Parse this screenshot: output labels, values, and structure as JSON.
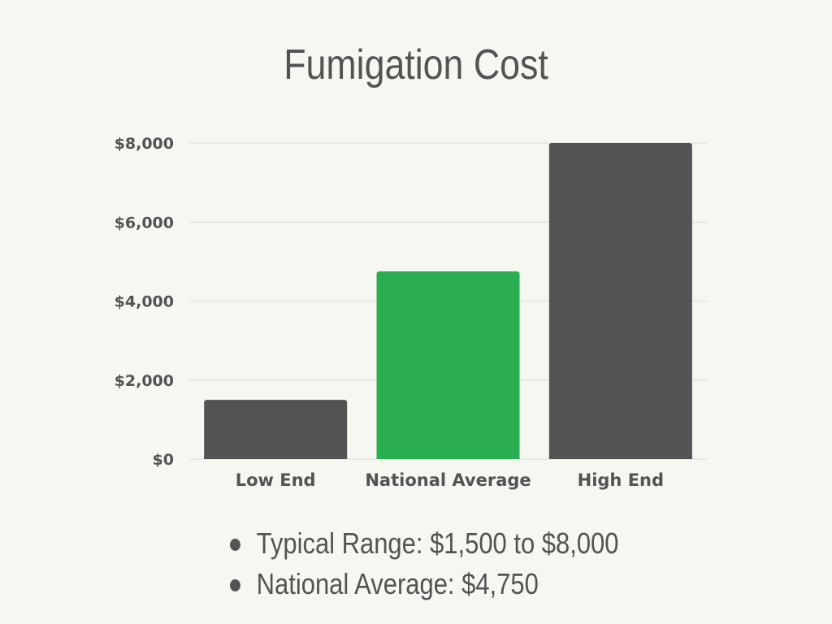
{
  "colors": {
    "background": "#f7f7f1",
    "text": "#535353",
    "bar_dark": "#535353",
    "bar_highlight": "#2bad51",
    "grid": "#d9d9d6"
  },
  "bullets": [
    "Typical Range: $1,500 to $8,000",
    "National Average: $4,750"
  ],
  "chart_data": {
    "type": "bar",
    "title": "Fumigation Cost",
    "categories": [
      "Low End",
      "National Average",
      "High End"
    ],
    "values": [
      1500,
      4750,
      8000
    ],
    "bar_colors": [
      "#535353",
      "#2bad51",
      "#535353"
    ],
    "ylim": [
      0,
      8000
    ],
    "yticks": [
      0,
      2000,
      4000,
      6000,
      8000
    ],
    "ytick_labels": [
      "$0",
      "$2,000",
      "$4,000",
      "$6,000",
      "$8,000"
    ],
    "xlabel": "",
    "ylabel": "",
    "grid": true,
    "legend": "none"
  }
}
